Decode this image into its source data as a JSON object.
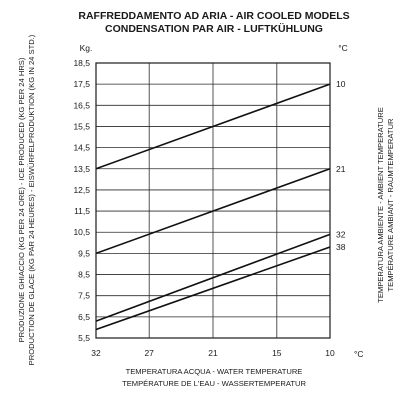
{
  "title": {
    "line1": "RAFFREDDAMENTO AD ARIA - AIR COOLED MODELS",
    "line2": "CONDENSATION PAR AIR - LUFTKÜHLUNG"
  },
  "y_unit": "Kg.",
  "legend_unit": "°C",
  "x_unit": "°C",
  "y_axis_label": {
    "line1": "PRODUZIONE GHIACCIO (KG PER 24 ORE) - ICE PRODUCED (KG PER 24 HRS)",
    "line2": "PRODUCTION DE GLACE (KG PAR 24 HEURES) - EISWÜRFELPRODUKTION (KG IN 24 STD.)"
  },
  "x_axis_label": {
    "line1": "TEMPERATURA ACQUA - WATER TEMPERATURE",
    "line2": "TEMPÉRATURE DE L'EAU  - WASSERTEMPERATUR"
  },
  "right_axis_label": {
    "line1": "TEMPERATURA AMBIENTE - AMBIENT TEMPERATURE",
    "line2": "TEMPÉRATURE AMBIANT - RAUMTEMPERATUR"
  },
  "chart_data": {
    "type": "line",
    "x": [
      32,
      27,
      21,
      15,
      10
    ],
    "x_tick_labels": [
      "32",
      "27",
      "21",
      "15",
      "10"
    ],
    "xlim": [
      32,
      10
    ],
    "ylim": [
      5.5,
      18.5
    ],
    "y_ticks": [
      5.5,
      6.5,
      7.5,
      8.5,
      9.5,
      10.5,
      11.5,
      12.5,
      13.5,
      14.5,
      15.5,
      16.5,
      17.5,
      18.5
    ],
    "y_tick_labels": [
      "5,5",
      "6,5",
      "7,5",
      "8,5",
      "9,5",
      "10,5",
      "11,5",
      "12,5",
      "13,5",
      "14,5",
      "15,5",
      "16,5",
      "17,5",
      "18,5"
    ],
    "grid": true,
    "series": [
      {
        "name": "10",
        "points": [
          [
            32,
            13.5
          ],
          [
            10,
            17.5
          ]
        ]
      },
      {
        "name": "21",
        "points": [
          [
            32,
            9.5
          ],
          [
            10,
            13.5
          ]
        ]
      },
      {
        "name": "32",
        "points": [
          [
            32,
            6.3
          ],
          [
            10,
            10.4
          ]
        ]
      },
      {
        "name": "38",
        "points": [
          [
            32,
            5.9
          ],
          [
            10,
            9.8
          ]
        ]
      }
    ]
  }
}
